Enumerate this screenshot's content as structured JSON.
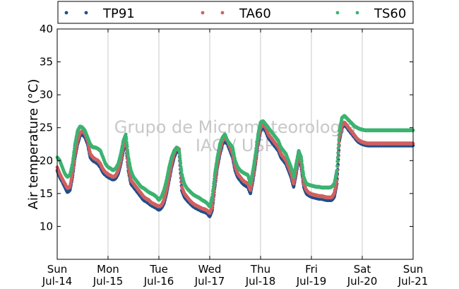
{
  "chart_data": {
    "type": "scatter",
    "ylabel": "Air temperature (°C)",
    "xlabel": "",
    "ylim": [
      5,
      40
    ],
    "yticks": [
      10,
      15,
      20,
      25,
      30,
      35,
      40
    ],
    "xlim": [
      0,
      7
    ],
    "xticks": [
      {
        "x": 0,
        "day": "Sun",
        "date": "Jul-14"
      },
      {
        "x": 1,
        "day": "Mon",
        "date": "Jul-15"
      },
      {
        "x": 2,
        "day": "Tue",
        "date": "Jul-16"
      },
      {
        "x": 3,
        "day": "Wed",
        "date": "Jul-17"
      },
      {
        "x": 4,
        "day": "Thu",
        "date": "Jul-18"
      },
      {
        "x": 5,
        "day": "Fri",
        "date": "Jul-19"
      },
      {
        "x": 6,
        "day": "Sat",
        "date": "Jul-20"
      },
      {
        "x": 7,
        "day": "Sun",
        "date": "Jul-21"
      }
    ],
    "grid": "vertical",
    "legend_position": "top",
    "watermark": [
      "Grupo de Micrometeorologia",
      "IAG / USP"
    ],
    "x_unit": "days since Jul-14 00:00",
    "series": [
      {
        "name": "TP91",
        "color": "#1f4e8c",
        "x": [
          0,
          0.05,
          0.1,
          0.15,
          0.2,
          0.25,
          0.3,
          0.35,
          0.4,
          0.45,
          0.5,
          0.55,
          0.6,
          0.65,
          0.7,
          0.75,
          0.8,
          0.85,
          0.9,
          0.95,
          1,
          1.05,
          1.1,
          1.15,
          1.2,
          1.25,
          1.3,
          1.35,
          1.4,
          1.45,
          1.5,
          1.55,
          1.6,
          1.65,
          1.7,
          1.75,
          1.8,
          1.85,
          1.9,
          1.95,
          2,
          2.05,
          2.1,
          2.15,
          2.2,
          2.25,
          2.3,
          2.35,
          2.4,
          2.45,
          2.5,
          2.55,
          2.6,
          2.65,
          2.7,
          2.75,
          2.8,
          2.85,
          2.9,
          2.95,
          3,
          3.05,
          3.1,
          3.15,
          3.2,
          3.25,
          3.3,
          3.35,
          3.4,
          3.45,
          3.5,
          3.55,
          3.6,
          3.65,
          3.7,
          3.75,
          3.8,
          3.85,
          3.9,
          3.95,
          4,
          4.05,
          4.1,
          4.15,
          4.2,
          4.25,
          4.3,
          4.35,
          4.4,
          4.45,
          4.5,
          4.55,
          4.6,
          4.65,
          4.7,
          4.75,
          4.8,
          4.85,
          4.9,
          4.95,
          5,
          5.05,
          5.1,
          5.15,
          5.2,
          5.25,
          5.3,
          5.35,
          5.4,
          5.45,
          5.5,
          5.55,
          5.6,
          5.65,
          5.7,
          5.75,
          5.8,
          5.85,
          5.9,
          5.95,
          6,
          6.05,
          6.1,
          6.15,
          6.2,
          6.25,
          6.3,
          6.35,
          6.4,
          6.45,
          6.5,
          6.55,
          6.6,
          6.65,
          6.7,
          6.75,
          6.8,
          6.85,
          6.9,
          6.95,
          7
        ],
        "values": [
          18.5,
          17.5,
          16.8,
          16.0,
          15.2,
          15.5,
          17.5,
          20.5,
          22.5,
          23.8,
          24.0,
          23.5,
          22.5,
          20.5,
          20.0,
          19.8,
          19.5,
          19.0,
          18.2,
          17.8,
          17.5,
          17.3,
          17.1,
          17.3,
          18.0,
          19.5,
          21.5,
          22.5,
          18.5,
          16.5,
          16.0,
          15.5,
          15.0,
          14.5,
          14.0,
          13.8,
          13.5,
          13.2,
          13.0,
          12.8,
          12.5,
          12.8,
          13.5,
          15.0,
          17.0,
          19.0,
          20.5,
          21.5,
          21.2,
          15.5,
          14.5,
          14.0,
          13.6,
          13.2,
          12.9,
          12.7,
          12.5,
          12.3,
          12.2,
          12.0,
          11.5,
          12.5,
          16.0,
          19.0,
          21.0,
          22.5,
          23.0,
          22.5,
          21.5,
          20.5,
          18.5,
          17.5,
          17.0,
          16.5,
          16.2,
          16.0,
          15.0,
          17.0,
          19.5,
          22.5,
          24.5,
          25.2,
          24.5,
          23.5,
          23.0,
          22.5,
          22.0,
          21.5,
          20.5,
          20.0,
          19.5,
          18.5,
          17.5,
          16.0,
          18.0,
          20.5,
          19.0,
          16.0,
          15.0,
          14.7,
          14.5,
          14.4,
          14.3,
          14.2,
          14.2,
          14.1,
          14.0,
          14.0,
          14.0,
          14.5,
          16.5,
          23.0,
          25.0,
          25.5,
          25.0,
          24.5,
          24.0,
          23.5,
          23.0,
          22.7,
          22.5,
          22.4,
          22.3,
          22.3,
          22.3,
          22.3,
          22.3,
          22.3,
          22.3,
          22.3,
          22.3,
          22.3,
          22.3,
          22.3,
          22.3,
          22.3,
          22.3,
          22.3,
          22.3,
          22.3,
          22.3
        ]
      },
      {
        "name": "TA60",
        "color": "#d06060",
        "x": [
          0,
          0.05,
          0.1,
          0.15,
          0.2,
          0.25,
          0.3,
          0.35,
          0.4,
          0.45,
          0.5,
          0.55,
          0.6,
          0.65,
          0.7,
          0.75,
          0.8,
          0.85,
          0.9,
          0.95,
          1,
          1.05,
          1.1,
          1.15,
          1.2,
          1.25,
          1.3,
          1.35,
          1.4,
          1.45,
          1.5,
          1.55,
          1.6,
          1.65,
          1.7,
          1.75,
          1.8,
          1.85,
          1.9,
          1.95,
          2,
          2.05,
          2.1,
          2.15,
          2.2,
          2.25,
          2.3,
          2.35,
          2.4,
          2.45,
          2.5,
          2.55,
          2.6,
          2.65,
          2.7,
          2.75,
          2.8,
          2.85,
          2.9,
          2.95,
          3,
          3.05,
          3.1,
          3.15,
          3.2,
          3.25,
          3.3,
          3.35,
          3.4,
          3.45,
          3.5,
          3.55,
          3.6,
          3.65,
          3.7,
          3.75,
          3.8,
          3.85,
          3.9,
          3.95,
          4,
          4.05,
          4.1,
          4.15,
          4.2,
          4.25,
          4.3,
          4.35,
          4.4,
          4.45,
          4.5,
          4.55,
          4.6,
          4.65,
          4.7,
          4.75,
          4.8,
          4.85,
          4.9,
          4.95,
          5,
          5.05,
          5.1,
          5.15,
          5.2,
          5.25,
          5.3,
          5.35,
          5.4,
          5.45,
          5.5,
          5.55,
          5.6,
          5.65,
          5.7,
          5.75,
          5.8,
          5.85,
          5.9,
          5.95,
          6,
          6.05,
          6.1,
          6.15,
          6.2,
          6.25,
          6.3,
          6.35,
          6.4,
          6.45,
          6.5,
          6.55,
          6.6,
          6.65,
          6.7,
          6.75,
          6.8,
          6.85,
          6.9,
          6.95,
          7
        ],
        "values": [
          19.0,
          18.0,
          17.2,
          16.5,
          15.8,
          16.0,
          18.0,
          21.0,
          23.0,
          24.2,
          24.5,
          24.0,
          23.0,
          21.0,
          20.5,
          20.2,
          20.0,
          19.5,
          18.7,
          18.2,
          17.9,
          17.7,
          17.5,
          17.7,
          18.5,
          20.0,
          22.0,
          23.0,
          19.0,
          17.0,
          16.5,
          16.0,
          15.5,
          15.0,
          14.5,
          14.2,
          14.0,
          13.6,
          13.4,
          13.2,
          13.0,
          13.2,
          14.0,
          15.5,
          17.5,
          19.5,
          21.0,
          22.0,
          21.7,
          16.0,
          15.0,
          14.5,
          14.0,
          13.6,
          13.3,
          13.1,
          12.9,
          12.7,
          12.6,
          12.4,
          12.0,
          13.0,
          16.5,
          19.5,
          21.5,
          23.0,
          23.5,
          23.0,
          22.0,
          21.0,
          19.0,
          18.0,
          17.5,
          17.0,
          16.7,
          16.5,
          15.5,
          17.5,
          20.0,
          23.0,
          25.0,
          25.5,
          25.0,
          24.0,
          23.5,
          23.0,
          22.5,
          22.0,
          21.0,
          20.5,
          20.0,
          19.0,
          18.0,
          16.5,
          18.5,
          21.0,
          19.5,
          16.5,
          15.5,
          15.1,
          14.9,
          14.8,
          14.7,
          14.6,
          14.6,
          14.5,
          14.4,
          14.4,
          14.4,
          15.0,
          17.0,
          23.5,
          25.3,
          25.8,
          25.3,
          24.8,
          24.3,
          23.8,
          23.3,
          23.0,
          22.8,
          22.7,
          22.6,
          22.6,
          22.6,
          22.6,
          22.6,
          22.6,
          22.6,
          22.6,
          22.6,
          22.6,
          22.6,
          22.6,
          22.6,
          22.6,
          22.6,
          22.6,
          22.6,
          22.6,
          22.6
        ]
      },
      {
        "name": "TS60",
        "color": "#3cb371",
        "x": [
          0,
          0.05,
          0.1,
          0.15,
          0.2,
          0.25,
          0.3,
          0.35,
          0.4,
          0.45,
          0.5,
          0.55,
          0.6,
          0.65,
          0.7,
          0.75,
          0.8,
          0.85,
          0.9,
          0.95,
          1,
          1.05,
          1.1,
          1.15,
          1.2,
          1.25,
          1.3,
          1.35,
          1.4,
          1.45,
          1.5,
          1.55,
          1.6,
          1.65,
          1.7,
          1.75,
          1.8,
          1.85,
          1.9,
          1.95,
          2,
          2.05,
          2.1,
          2.15,
          2.2,
          2.25,
          2.3,
          2.35,
          2.4,
          2.45,
          2.5,
          2.55,
          2.6,
          2.65,
          2.7,
          2.75,
          2.8,
          2.85,
          2.9,
          2.95,
          3,
          3.05,
          3.1,
          3.15,
          3.2,
          3.25,
          3.3,
          3.35,
          3.4,
          3.45,
          3.5,
          3.55,
          3.6,
          3.65,
          3.7,
          3.75,
          3.8,
          3.85,
          3.9,
          3.95,
          4,
          4.05,
          4.1,
          4.15,
          4.2,
          4.25,
          4.3,
          4.35,
          4.4,
          4.45,
          4.5,
          4.55,
          4.6,
          4.65,
          4.7,
          4.75,
          4.8,
          4.85,
          4.9,
          4.95,
          5,
          5.05,
          5.1,
          5.15,
          5.2,
          5.25,
          5.3,
          5.35,
          5.4,
          5.45,
          5.5,
          5.55,
          5.6,
          5.65,
          5.7,
          5.75,
          5.8,
          5.85,
          5.9,
          5.95,
          6,
          6.05,
          6.1,
          6.15,
          6.2,
          6.25,
          6.3,
          6.35,
          6.4,
          6.45,
          6.5,
          6.55,
          6.6,
          6.65,
          6.7,
          6.75,
          6.8,
          6.85,
          6.9,
          6.95,
          7
        ],
        "values": [
          20.5,
          20.0,
          19.0,
          18.0,
          17.5,
          17.8,
          19.5,
          22.5,
          24.5,
          25.2,
          25.0,
          24.5,
          23.5,
          22.5,
          22.0,
          22.0,
          21.8,
          21.5,
          20.5,
          19.5,
          19.0,
          18.8,
          18.5,
          18.8,
          19.5,
          21.0,
          23.0,
          24.0,
          20.5,
          18.5,
          17.5,
          17.0,
          16.5,
          16.0,
          15.8,
          15.5,
          15.2,
          15.0,
          14.8,
          14.5,
          14.0,
          14.5,
          15.5,
          17.0,
          19.0,
          20.5,
          21.5,
          22.0,
          21.5,
          18.0,
          16.5,
          15.8,
          15.4,
          15.0,
          14.7,
          14.5,
          14.3,
          14.0,
          13.8,
          13.5,
          13.0,
          14.5,
          18.0,
          20.5,
          22.5,
          23.5,
          24.0,
          23.0,
          22.5,
          22.0,
          20.0,
          19.0,
          18.5,
          18.2,
          18.0,
          17.8,
          16.5,
          18.5,
          21.0,
          24.0,
          25.8,
          26.0,
          25.5,
          25.0,
          24.5,
          24.0,
          23.5,
          23.0,
          22.0,
          21.5,
          21.0,
          20.0,
          19.0,
          17.5,
          19.5,
          21.5,
          20.5,
          17.5,
          16.5,
          16.3,
          16.2,
          16.1,
          16.0,
          16.0,
          15.9,
          15.9,
          15.9,
          15.9,
          16.0,
          16.5,
          18.5,
          24.5,
          26.5,
          26.8,
          26.4,
          26.0,
          25.6,
          25.2,
          25.0,
          24.8,
          24.7,
          24.6,
          24.6,
          24.6,
          24.6,
          24.6,
          24.6,
          24.6,
          24.6,
          24.6,
          24.6,
          24.6,
          24.6,
          24.6,
          24.6,
          24.6,
          24.6,
          24.6,
          24.6,
          24.6,
          24.6
        ]
      }
    ]
  }
}
